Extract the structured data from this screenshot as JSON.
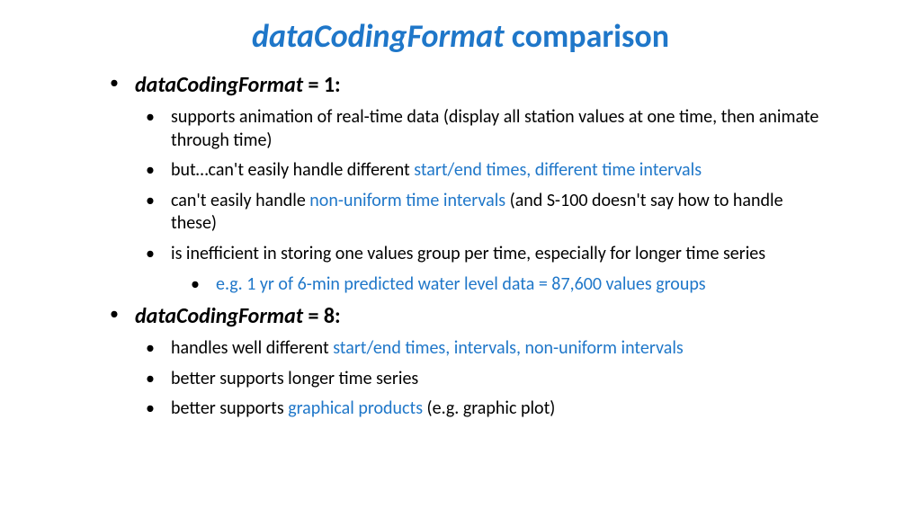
{
  "colors": {
    "accent": "#1f77c9",
    "text": "#000000",
    "background": "#ffffff"
  },
  "typography": {
    "title_fontsize": 36,
    "l1_fontsize": 24,
    "l2_fontsize": 20,
    "l3_fontsize": 20,
    "font_family": "Calibri"
  },
  "title": {
    "italic_part": "dataCodingFormat",
    "rest": " comparison"
  },
  "sections": [
    {
      "heading_italic": "dataCodingFormat",
      "heading_rest": " = 1:",
      "items": [
        {
          "pre": "supports animation of real-time data (display all station values at one time, then animate through time)",
          "hl": "",
          "post": ""
        },
        {
          "pre": "but…can't easily handle different ",
          "hl": "start/end times, different time intervals",
          "post": ""
        },
        {
          "pre": "can't easily handle ",
          "hl": "non-uniform time intervals",
          "post": " (and S-100 doesn't say how to handle these)"
        },
        {
          "pre": "is inefficient in storing one values group per time, especially for longer time series",
          "hl": "",
          "post": "",
          "sub": {
            "pre": "",
            "hl": "e.g. 1 yr of 6-min predicted water level data = 87,600 values groups",
            "post": ""
          }
        }
      ]
    },
    {
      "heading_italic": "dataCodingFormat",
      "heading_rest": " = 8:",
      "items": [
        {
          "pre": "handles well different ",
          "hl": "start/end times, intervals, non-uniform intervals",
          "post": ""
        },
        {
          "pre": "better supports longer time series",
          "hl": "",
          "post": ""
        },
        {
          "pre": "better supports ",
          "hl": "graphical products",
          "post": " (e.g. graphic plot)"
        }
      ]
    }
  ]
}
